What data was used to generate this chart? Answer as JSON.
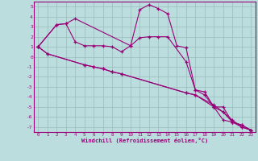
{
  "xlabel": "Windchill (Refroidissement éolien,°C)",
  "xlim": [
    -0.5,
    23.5
  ],
  "ylim": [
    -7.5,
    5.5
  ],
  "xticks": [
    0,
    1,
    2,
    3,
    4,
    5,
    6,
    7,
    8,
    9,
    10,
    11,
    12,
    13,
    14,
    15,
    16,
    17,
    18,
    19,
    20,
    21,
    22,
    23
  ],
  "yticks": [
    5,
    4,
    3,
    2,
    1,
    0,
    -1,
    -2,
    -3,
    -4,
    -5,
    -6,
    -7
  ],
  "line_color": "#990077",
  "bg_color": "#bbdddd",
  "grid_color": "#99bbbb",
  "lines": [
    {
      "x": [
        0,
        2,
        3,
        4,
        10,
        11,
        12,
        13,
        14,
        15,
        16,
        17,
        18,
        19,
        20,
        21,
        22,
        23
      ],
      "y": [
        1.0,
        3.2,
        3.3,
        3.8,
        1.1,
        4.7,
        5.2,
        4.8,
        4.3,
        1.1,
        0.9,
        -3.3,
        -3.5,
        -5.0,
        -6.3,
        -6.5,
        -7.0,
        -7.3
      ]
    },
    {
      "x": [
        0,
        2,
        3,
        4,
        5,
        6,
        7,
        8,
        9,
        10,
        11,
        12,
        13,
        14,
        16,
        17,
        18,
        19,
        20,
        21,
        22,
        23
      ],
      "y": [
        1.0,
        3.2,
        3.3,
        1.5,
        1.1,
        1.1,
        1.1,
        1.0,
        0.5,
        1.1,
        1.9,
        2.0,
        2.0,
        2.0,
        -0.5,
        -3.3,
        -3.8,
        -5.0,
        -5.0,
        -6.5,
        -6.8,
        -7.3
      ]
    },
    {
      "x": [
        0,
        1,
        5,
        6,
        7,
        8,
        9,
        16,
        17,
        19,
        20,
        21,
        22,
        23
      ],
      "y": [
        1.0,
        0.3,
        -0.8,
        -1.0,
        -1.2,
        -1.5,
        -1.7,
        -3.6,
        -3.8,
        -4.8,
        -5.5,
        -6.3,
        -7.0,
        -7.3
      ]
    },
    {
      "x": [
        0,
        1,
        5,
        6,
        7,
        8,
        9,
        16,
        17,
        19,
        20,
        21,
        22,
        23
      ],
      "y": [
        1.0,
        0.3,
        -0.8,
        -1.0,
        -1.2,
        -1.5,
        -1.7,
        -3.6,
        -3.8,
        -5.0,
        -5.5,
        -6.5,
        -6.8,
        -7.3
      ]
    }
  ]
}
